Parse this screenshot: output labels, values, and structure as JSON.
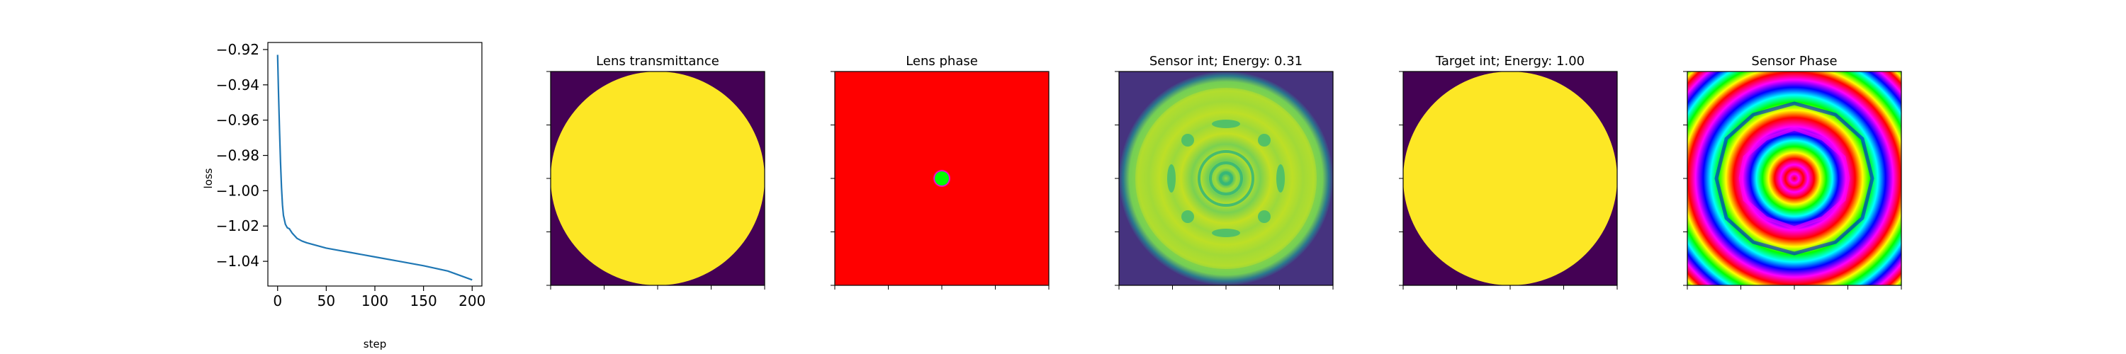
{
  "chart_data": [
    {
      "type": "line",
      "xlabel": "step",
      "ylabel": "loss",
      "xlim": [
        -10,
        210
      ],
      "ylim": [
        -1.054,
        -0.916
      ],
      "xticks": [
        0,
        50,
        100,
        150,
        200
      ],
      "yticks": [
        -0.92,
        -0.94,
        -0.96,
        -0.98,
        -1.0,
        -1.02,
        -1.04
      ],
      "ytick_labels": [
        "−0.92",
        "−0.94",
        "−0.96",
        "−0.98",
        "−1.00",
        "−1.02",
        "−1.04"
      ],
      "grid": false,
      "series": [
        {
          "color": "#1f77b4",
          "x": [
            0,
            1,
            2,
            3,
            4,
            5,
            6,
            8,
            10,
            12,
            15,
            20,
            25,
            30,
            40,
            50,
            60,
            75,
            100,
            125,
            150,
            175,
            200
          ],
          "y": [
            -0.923,
            -0.946,
            -0.966,
            -0.984,
            -0.998,
            -1.008,
            -1.014,
            -1.019,
            -1.021,
            -1.0215,
            -1.024,
            -1.027,
            -1.0285,
            -1.0295,
            -1.031,
            -1.0325,
            -1.0335,
            -1.035,
            -1.0375,
            -1.04,
            -1.0425,
            -1.0455,
            -1.0505
          ]
        }
      ]
    },
    {
      "type": "heatmap",
      "title": "Lens transmittance",
      "colormap": "viridis",
      "pattern": "uniform disk",
      "inside_color": "#fde725",
      "outside_color": "#440154"
    },
    {
      "type": "heatmap",
      "title": "Lens phase",
      "colormap": "hsv",
      "pattern": "concentric rings (Fresnel lens phase)"
    },
    {
      "type": "heatmap",
      "title": "Sensor int; Energy: 0.31",
      "colormap": "viridis",
      "pattern": "disk with ring / speckle pattern"
    },
    {
      "type": "heatmap",
      "title": "Target int; Energy: 1.00",
      "colormap": "viridis",
      "pattern": "uniform disk",
      "inside_color": "#fde725",
      "outside_color": "#440154"
    },
    {
      "type": "heatmap",
      "title": "Sensor Phase",
      "colormap": "hsv",
      "pattern": "wavy concentric rings"
    }
  ]
}
